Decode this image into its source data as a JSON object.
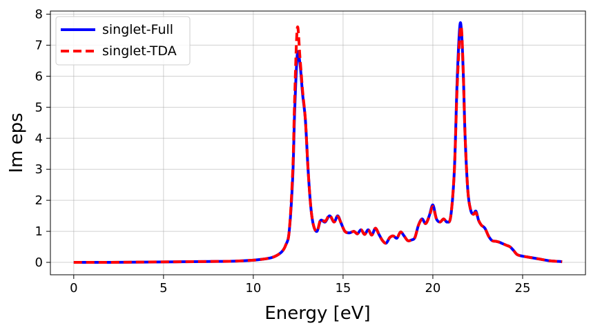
{
  "chart_data": {
    "type": "line",
    "title": "",
    "xlabel": "Energy [eV]",
    "ylabel": "Im eps",
    "xlim": [
      -1.3,
      28.5
    ],
    "ylim": [
      -0.4,
      8.1
    ],
    "xticks": [
      0,
      5,
      10,
      15,
      20,
      25
    ],
    "yticks": [
      0,
      1,
      2,
      3,
      4,
      5,
      6,
      7,
      8
    ],
    "xtick_labels": [
      "0",
      "5",
      "10",
      "15",
      "20",
      "25"
    ],
    "ytick_labels": [
      "0",
      "1",
      "2",
      "3",
      "4",
      "5",
      "6",
      "7",
      "8"
    ],
    "grid": true,
    "legend_position": "top-left",
    "series": [
      {
        "name": "singlet-Full",
        "color": "#0000ff",
        "style": "solid",
        "x": [
          0,
          2,
          4,
          6,
          8,
          9,
          10,
          10.5,
          11,
          11.3,
          11.6,
          11.8,
          12.0,
          12.2,
          12.3,
          12.45,
          12.6,
          12.75,
          12.9,
          13.05,
          13.2,
          13.35,
          13.55,
          13.75,
          14.0,
          14.25,
          14.5,
          14.7,
          14.9,
          15.1,
          15.35,
          15.6,
          15.8,
          16.0,
          16.2,
          16.4,
          16.6,
          16.8,
          17.0,
          17.2,
          17.4,
          17.6,
          17.8,
          18.0,
          18.2,
          18.4,
          18.6,
          18.8,
          19.0,
          19.2,
          19.4,
          19.6,
          19.8,
          20.0,
          20.2,
          20.4,
          20.6,
          20.8,
          21.0,
          21.2,
          21.35,
          21.5,
          21.6,
          21.7,
          21.8,
          21.95,
          22.1,
          22.25,
          22.4,
          22.55,
          22.7,
          22.9,
          23.1,
          23.3,
          23.5,
          23.7,
          23.9,
          24.1,
          24.3,
          24.5,
          24.7,
          25.0,
          25.5,
          26.0,
          26.5,
          27.0,
          27.2
        ],
        "y": [
          0.0,
          0.0,
          0.01,
          0.02,
          0.03,
          0.04,
          0.07,
          0.1,
          0.15,
          0.22,
          0.35,
          0.55,
          1.0,
          2.8,
          4.8,
          6.7,
          6.4,
          5.4,
          4.6,
          3.0,
          1.8,
          1.2,
          1.0,
          1.35,
          1.3,
          1.5,
          1.3,
          1.5,
          1.25,
          1.0,
          0.95,
          1.0,
          0.92,
          1.05,
          0.9,
          1.05,
          0.88,
          1.1,
          0.9,
          0.7,
          0.62,
          0.8,
          0.85,
          0.78,
          0.98,
          0.85,
          0.7,
          0.72,
          0.8,
          1.2,
          1.4,
          1.25,
          1.5,
          1.85,
          1.4,
          1.3,
          1.4,
          1.3,
          1.5,
          3.0,
          5.8,
          7.6,
          7.4,
          6.0,
          4.0,
          2.3,
          1.7,
          1.55,
          1.65,
          1.35,
          1.2,
          1.1,
          0.85,
          0.7,
          0.68,
          0.65,
          0.6,
          0.55,
          0.5,
          0.38,
          0.25,
          0.2,
          0.15,
          0.1,
          0.05,
          0.03,
          0.02
        ]
      },
      {
        "name": "singlet-TDA",
        "color": "#ff0000",
        "style": "dashed",
        "x": [
          0,
          2,
          4,
          6,
          8,
          9,
          10,
          10.5,
          11,
          11.3,
          11.6,
          11.8,
          12.0,
          12.2,
          12.3,
          12.45,
          12.6,
          12.75,
          12.9,
          13.05,
          13.2,
          13.35,
          13.55,
          13.75,
          14.0,
          14.25,
          14.5,
          14.7,
          14.9,
          15.1,
          15.35,
          15.6,
          15.8,
          16.0,
          16.2,
          16.4,
          16.6,
          16.8,
          17.0,
          17.2,
          17.4,
          17.6,
          17.8,
          18.0,
          18.2,
          18.4,
          18.6,
          18.8,
          19.0,
          19.2,
          19.4,
          19.6,
          19.8,
          20.0,
          20.2,
          20.4,
          20.6,
          20.8,
          21.0,
          21.2,
          21.35,
          21.5,
          21.6,
          21.7,
          21.8,
          21.95,
          22.1,
          22.25,
          22.4,
          22.55,
          22.7,
          22.9,
          23.1,
          23.3,
          23.5,
          23.7,
          23.9,
          24.1,
          24.3,
          24.5,
          24.7,
          25.0,
          25.5,
          26.0,
          26.5,
          27.0,
          27.2
        ],
        "y": [
          0.0,
          0.0,
          0.01,
          0.02,
          0.03,
          0.04,
          0.07,
          0.1,
          0.15,
          0.22,
          0.35,
          0.55,
          1.0,
          3.0,
          5.2,
          7.55,
          6.6,
          5.5,
          4.6,
          3.0,
          1.8,
          1.2,
          1.0,
          1.38,
          1.32,
          1.52,
          1.3,
          1.48,
          1.25,
          1.0,
          0.95,
          1.0,
          0.92,
          1.05,
          0.9,
          1.05,
          0.88,
          1.1,
          0.9,
          0.7,
          0.62,
          0.8,
          0.85,
          0.78,
          0.98,
          0.85,
          0.7,
          0.72,
          0.8,
          1.2,
          1.38,
          1.25,
          1.48,
          1.8,
          1.4,
          1.3,
          1.4,
          1.3,
          1.5,
          3.0,
          5.6,
          7.3,
          7.5,
          6.0,
          4.0,
          2.3,
          1.7,
          1.55,
          1.6,
          1.35,
          1.2,
          1.1,
          0.85,
          0.7,
          0.68,
          0.65,
          0.6,
          0.55,
          0.5,
          0.38,
          0.25,
          0.2,
          0.15,
          0.1,
          0.05,
          0.03,
          0.02
        ]
      }
    ]
  }
}
